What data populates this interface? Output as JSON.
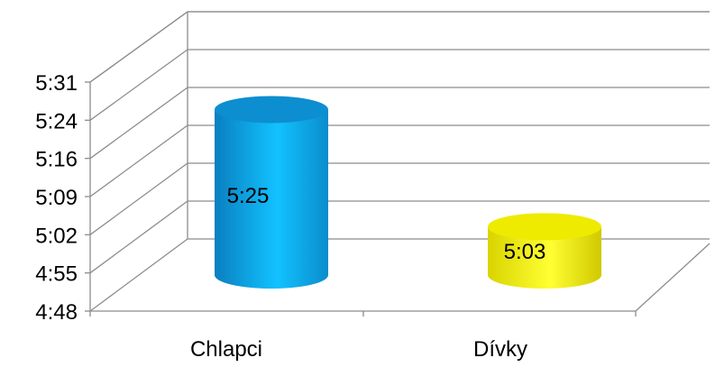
{
  "chart_data": {
    "type": "bar",
    "style": "3d-cylinder",
    "title": "",
    "xlabel": "",
    "ylabel": "",
    "categories": [
      "Chlapci",
      "Dívky"
    ],
    "values": [
      "5:25",
      "5:03"
    ],
    "data_labels": [
      "5:25",
      "5:03"
    ],
    "yticks": [
      "4:48",
      "4:55",
      "5:02",
      "5:09",
      "5:16",
      "5:24",
      "5:31"
    ],
    "ylim": [
      "4:48",
      "5:31"
    ],
    "grid": true,
    "legend": "none",
    "colors": [
      "#1aa3e0",
      "#f5f200"
    ]
  }
}
